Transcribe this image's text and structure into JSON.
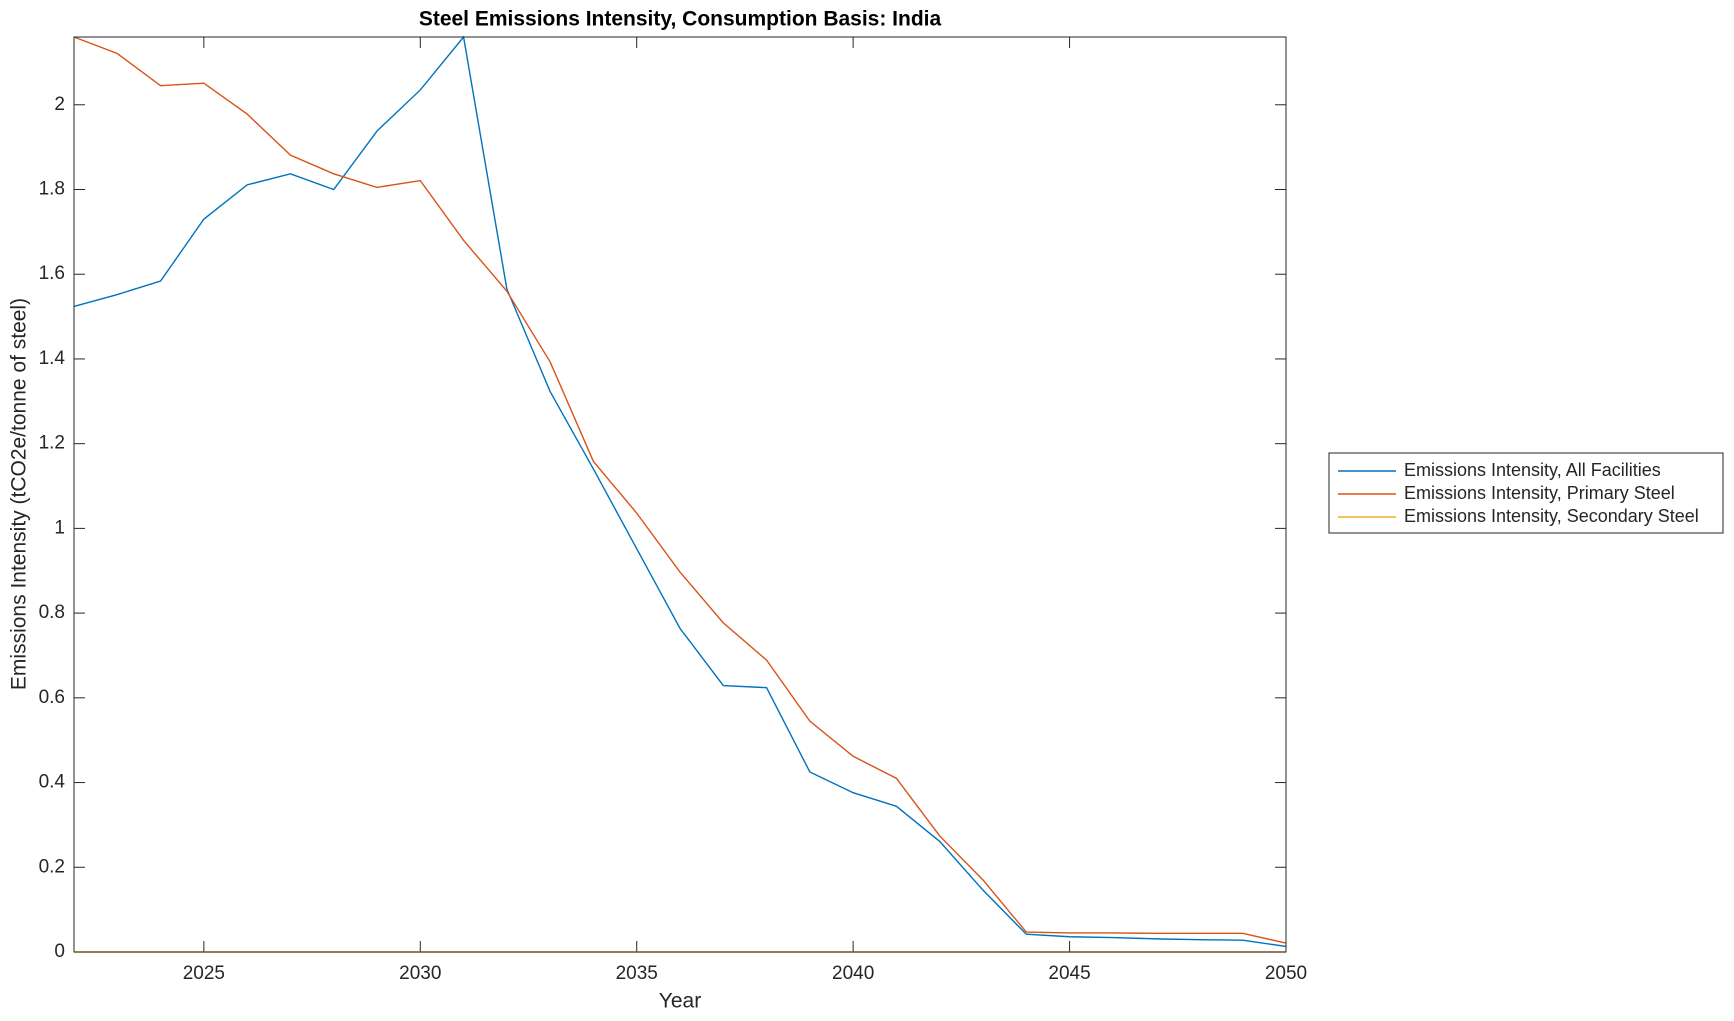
{
  "chart_data": {
    "type": "line",
    "title": "Steel Emissions Intensity, Consumption Basis: India",
    "x_label": "Year",
    "y_label": "Emissions Intensity (tCO2e/tonne of steel)",
    "x": [
      2022,
      2023,
      2024,
      2025,
      2026,
      2027,
      2028,
      2029,
      2030,
      2031,
      2032,
      2033,
      2034,
      2035,
      2036,
      2037,
      2038,
      2039,
      2040,
      2041,
      2042,
      2043,
      2044,
      2045,
      2046,
      2047,
      2048,
      2049,
      2050
    ],
    "series": [
      {
        "name": "Emissions Intensity, All Facilities",
        "color": "#0072bd",
        "values": [
          1.524,
          1.552,
          1.584,
          1.73,
          1.811,
          1.837,
          1.8,
          1.938,
          2.035,
          2.16,
          1.565,
          1.323,
          1.14,
          0.952,
          0.764,
          0.629,
          0.624,
          0.425,
          0.376,
          0.344,
          0.261,
          0.146,
          0.042,
          0.036,
          0.034,
          0.031,
          0.029,
          0.028,
          0.013
        ]
      },
      {
        "name": "Emissions Intensity, Primary Steel",
        "color": "#d95319",
        "values": [
          2.16,
          2.121,
          2.045,
          2.051,
          1.978,
          1.881,
          1.837,
          1.805,
          1.821,
          1.68,
          1.56,
          1.393,
          1.158,
          1.036,
          0.897,
          0.777,
          0.689,
          0.545,
          0.462,
          0.41,
          0.274,
          0.17,
          0.047,
          0.045,
          0.045,
          0.044,
          0.044,
          0.044,
          0.021
        ]
      },
      {
        "name": "Emissions Intensity, Secondary Steel",
        "color": "#edb120",
        "values": [
          0,
          0,
          0,
          0,
          0,
          0,
          0,
          0,
          0,
          0,
          0,
          0,
          0,
          0,
          0,
          0,
          0,
          0,
          0,
          0,
          0,
          0,
          0,
          0,
          0,
          0,
          0,
          0,
          0
        ]
      }
    ],
    "xlim": [
      2022,
      2050
    ],
    "xticks": [
      2025,
      2030,
      2035,
      2040,
      2045,
      2050
    ],
    "ylim": [
      0,
      2.16
    ],
    "yticks": [
      0,
      0.2,
      0.4,
      0.6,
      0.8,
      1,
      1.2,
      1.4,
      1.6,
      1.8,
      2
    ],
    "legend": "outside-right",
    "grid": false
  }
}
